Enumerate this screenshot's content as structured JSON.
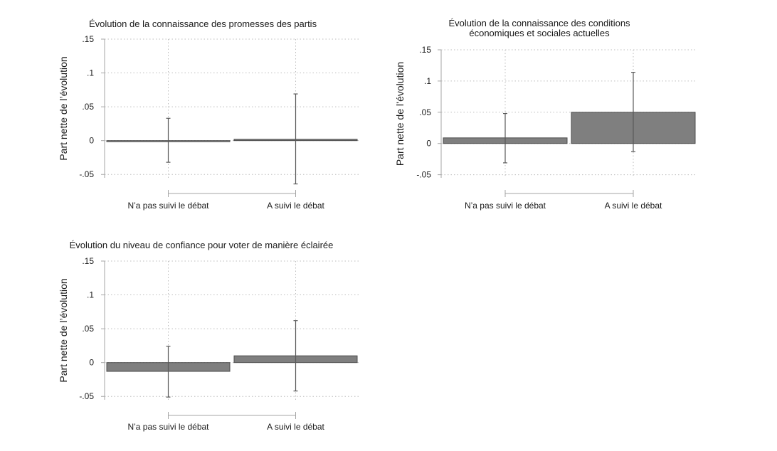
{
  "chart_data": [
    {
      "type": "bar",
      "title_lines": [
        "Évolution de la connaissance des promesses des partis"
      ],
      "ylabel": "Part nette de l’évolution",
      "categories": [
        "N’a pas suivi le débat",
        "A suivi le débat"
      ],
      "values": [
        0.0,
        0.002
      ],
      "ci_low": [
        -0.032,
        -0.064
      ],
      "ci_high": [
        0.033,
        0.069
      ],
      "ylim": [
        -0.055,
        0.15
      ],
      "yticks": [
        -0.05,
        0,
        0.05,
        0.1,
        0.15
      ],
      "ytick_labels": [
        "-.05",
        "0",
        ".05",
        ".1",
        ".15"
      ],
      "grid": true,
      "bar_color": "#7f7f7f"
    },
    {
      "type": "bar",
      "title_lines": [
        "Évolution de la connaissance des conditions",
        "économiques et sociales actuelles"
      ],
      "ylabel": "Part nette de l’évolution",
      "categories": [
        "N’a pas suivi le débat",
        "A suivi le débat"
      ],
      "values": [
        0.009,
        0.05
      ],
      "ci_low": [
        -0.031,
        -0.013
      ],
      "ci_high": [
        0.048,
        0.114
      ],
      "ylim": [
        -0.055,
        0.15
      ],
      "yticks": [
        -0.05,
        0,
        0.05,
        0.1,
        0.15
      ],
      "ytick_labels": [
        "-.05",
        "0",
        ".05",
        ".1",
        ".15"
      ],
      "grid": true,
      "bar_color": "#7f7f7f"
    },
    {
      "type": "bar",
      "title_lines": [
        "Évolution du niveau de confiance pour voter de manière éclairée"
      ],
      "ylabel": "Part nette de l’évolution",
      "categories": [
        "N’a pas suivi le débat",
        "A suivi le débat"
      ],
      "values": [
        -0.013,
        0.01
      ],
      "ci_low": [
        -0.051,
        -0.042
      ],
      "ci_high": [
        0.024,
        0.062
      ],
      "ylim": [
        -0.055,
        0.15
      ],
      "yticks": [
        -0.05,
        0,
        0.05,
        0.1,
        0.15
      ],
      "ytick_labels": [
        "-.05",
        "0",
        ".05",
        ".1",
        ".15"
      ],
      "grid": true,
      "bar_color": "#7f7f7f"
    }
  ]
}
